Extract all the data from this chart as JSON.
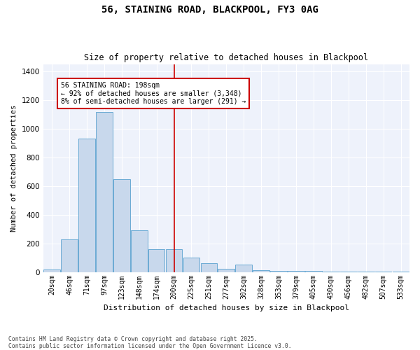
{
  "title": "56, STAINING ROAD, BLACKPOOL, FY3 0AG",
  "subtitle": "Size of property relative to detached houses in Blackpool",
  "xlabel": "Distribution of detached houses by size in Blackpool",
  "ylabel": "Number of detached properties",
  "categories": [
    "20sqm",
    "46sqm",
    "71sqm",
    "97sqm",
    "123sqm",
    "148sqm",
    "174sqm",
    "200sqm",
    "225sqm",
    "251sqm",
    "277sqm",
    "302sqm",
    "328sqm",
    "353sqm",
    "379sqm",
    "405sqm",
    "430sqm",
    "456sqm",
    "482sqm",
    "507sqm",
    "533sqm"
  ],
  "bar_values": [
    20,
    230,
    930,
    1120,
    650,
    290,
    160,
    160,
    100,
    60,
    25,
    50,
    15,
    10,
    10,
    10,
    5,
    5,
    5,
    5,
    5
  ],
  "bar_color": "#c8d8ec",
  "bar_edge_color": "#6aaad4",
  "annotation_text": "56 STAINING ROAD: 198sqm\n← 92% of detached houses are smaller (3,348)\n8% of semi-detached houses are larger (291) →",
  "vline_x": 7,
  "vline_color": "#cc0000",
  "annotation_box_color": "#cc0000",
  "background_color": "#eef2fb",
  "footer": "Contains HM Land Registry data © Crown copyright and database right 2025.\nContains public sector information licensed under the Open Government Licence v3.0.",
  "ylim": [
    0,
    1450
  ],
  "yticks": [
    0,
    200,
    400,
    600,
    800,
    1000,
    1200,
    1400
  ]
}
